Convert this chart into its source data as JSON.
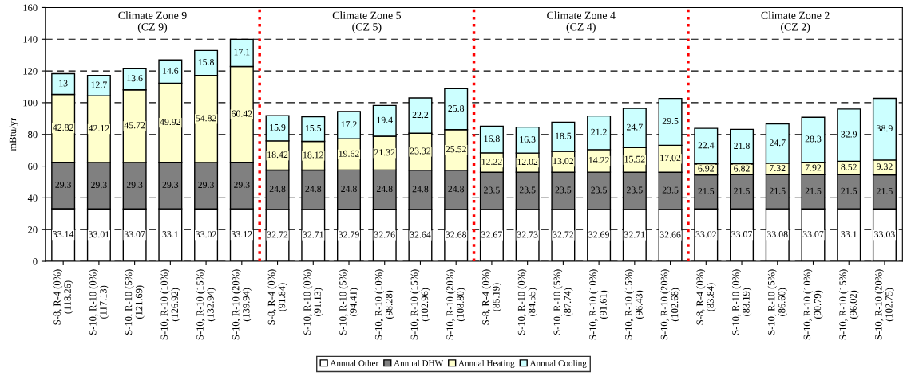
{
  "chart_data": {
    "type": "bar",
    "stacked": true,
    "ylabel": "mBtu/yr",
    "ylim": [
      0,
      160
    ],
    "yticks": [
      0,
      20,
      40,
      60,
      80,
      100,
      120,
      140,
      160
    ],
    "grid": "y",
    "legend": "bottom",
    "data_labels": true,
    "categories": [
      "S-8, R-4 (0%)\n(118.26)",
      "S-10, R-10 (0%)\n(117.13)",
      "S-10, R-10 (5%)\n(121.69)",
      "S-10, R-10 (10%)\n(126.92)",
      "S-10, R-10 (15%)\n(132.94)",
      "S-10, R-10 (20%)\n(139.94)",
      "S-8, R-4 (0%)\n(91.84)",
      "S-10, R-10 (0%)\n(91.13)",
      "S-10, R-10 (5%)\n(94.41)",
      "S-10, R-10 (10%)\n(98.28)",
      "S-10, R-10 (15%)\n(102.96)",
      "S-10, R-10 (20%)\n(108.80)",
      "S-8, R-4 (0%)\n(85.19)",
      "S-10, R-10 (0%)\n(84.55)",
      "S-10, R-10 (5%)\n(87.74)",
      "S-10, R-10 (10%)\n(91.61)",
      "S-10, R-10 (15%)\n(96.43)",
      "S-10, R-10 (20%)\n(102.68)",
      "S-8, R-4 (0%)\n(83.84)",
      "S-10, R-10 (0%)\n(83.19)",
      "S-10, R-10 (5%)\n(86.60)",
      "S-10, R-10 (10%)\n(90.79)",
      "S-10, R-10 (15%)\n(96.02)",
      "S-10, R-10 (20%)\n(102.75)"
    ],
    "series": [
      {
        "name": "Annual Other",
        "color": "#ffffff",
        "values": [
          33.14,
          33.01,
          33.07,
          33.1,
          33.02,
          33.12,
          32.72,
          32.71,
          32.79,
          32.76,
          32.64,
          32.68,
          32.67,
          32.73,
          32.72,
          32.69,
          32.71,
          32.66,
          33.02,
          33.07,
          33.08,
          33.07,
          33.1,
          33.03
        ]
      },
      {
        "name": "Annual DHW",
        "color": "#808080",
        "values": [
          29.3,
          29.3,
          29.3,
          29.3,
          29.3,
          29.3,
          24.8,
          24.8,
          24.8,
          24.8,
          24.8,
          24.8,
          23.5,
          23.5,
          23.5,
          23.5,
          23.5,
          23.5,
          21.5,
          21.5,
          21.5,
          21.5,
          21.5,
          21.5
        ]
      },
      {
        "name": "Annual Heating",
        "color": "#ffffcc",
        "values": [
          42.82,
          42.12,
          45.72,
          49.92,
          54.82,
          60.42,
          18.42,
          18.12,
          19.62,
          21.32,
          23.32,
          25.52,
          12.22,
          12.02,
          13.02,
          14.22,
          15.52,
          17.02,
          6.92,
          6.82,
          7.32,
          7.92,
          8.52,
          9.32
        ]
      },
      {
        "name": "Annual Cooling",
        "color": "#ccffff",
        "values": [
          13,
          12.7,
          13.6,
          14.6,
          15.8,
          17.1,
          15.9,
          15.5,
          17.2,
          19.4,
          22.2,
          25.8,
          16.8,
          16.3,
          18.5,
          21.2,
          24.7,
          29.5,
          22.4,
          21.8,
          24.7,
          28.3,
          32.9,
          38.9
        ]
      }
    ],
    "annotations": [
      "Climate Zone 9\n(CZ 9)",
      "Climate Zone 5\n(CZ 5)",
      "Climate Zone 4\n(CZ 4)",
      "Climate Zone 2\n(CZ 2)"
    ]
  }
}
